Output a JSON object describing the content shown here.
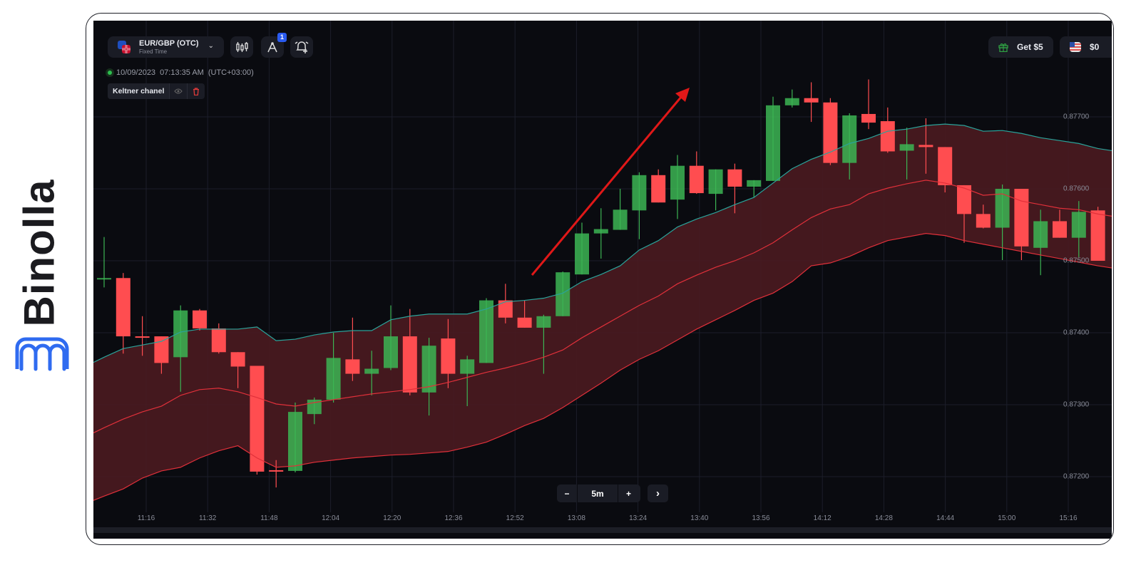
{
  "brand": {
    "name": "Binolla",
    "color": "#2f6bf0"
  },
  "header": {
    "asset": "EUR/GBP (OTC)",
    "asset_type": "Fixed Time",
    "drawings_badge": "1",
    "bonus_label": "Get $5",
    "balance": "$0"
  },
  "status": {
    "datetime": "10/09/2023",
    "time": "07:13:35 AM",
    "timezone": "(UTC+03:00)"
  },
  "indicator": {
    "name": "Keltner chanel"
  },
  "zoom": {
    "minus": "−",
    "timeframe": "5m",
    "plus": "+",
    "next": "›"
  },
  "colors": {
    "bull": "#3cb554",
    "bear": "#ff4d50",
    "upper_band": "#2aa39a",
    "band_lines": "#e0303a",
    "band_fill": "#4a1a20",
    "arrow": "#e01818"
  },
  "chart_data": {
    "type": "candlestick",
    "yticks": [
      "0.87700",
      "0.87600",
      "0.87500",
      "0.87400",
      "0.87300",
      "0.87200"
    ],
    "xticks": [
      "11:16",
      "11:32",
      "11:48",
      "12:04",
      "12:20",
      "12:36",
      "12:52",
      "13:08",
      "13:24",
      "13:40",
      "13:56",
      "14:12",
      "14:28",
      "14:44",
      "15:00",
      "15:16"
    ],
    "candles": [
      [
        0.87474,
        0.87533,
        0.87463,
        0.87476
      ],
      [
        0.87476,
        0.87483,
        0.87371,
        0.87395
      ],
      [
        0.87395,
        0.87423,
        0.87368,
        0.87393
      ],
      [
        0.87395,
        0.87395,
        0.87343,
        0.87358
      ],
      [
        0.87366,
        0.87438,
        0.87318,
        0.87431
      ],
      [
        0.87431,
        0.87433,
        0.87403,
        0.87406
      ],
      [
        0.87406,
        0.87413,
        0.87371,
        0.87373
      ],
      [
        0.87373,
        0.87373,
        0.87323,
        0.87353
      ],
      [
        0.87354,
        0.87354,
        0.87203,
        0.87207
      ],
      [
        0.87209,
        0.87223,
        0.87185,
        0.87207
      ],
      [
        0.87208,
        0.87303,
        0.87206,
        0.8729
      ],
      [
        0.87287,
        0.8731,
        0.87273,
        0.87307
      ],
      [
        0.87307,
        0.874,
        0.87303,
        0.87365
      ],
      [
        0.87363,
        0.87421,
        0.87333,
        0.87343
      ],
      [
        0.87343,
        0.87375,
        0.87313,
        0.8735
      ],
      [
        0.87351,
        0.87438,
        0.87348,
        0.87395
      ],
      [
        0.87395,
        0.87433,
        0.87313,
        0.87317
      ],
      [
        0.87317,
        0.87393,
        0.87285,
        0.87382
      ],
      [
        0.87392,
        0.87419,
        0.87323,
        0.87343
      ],
      [
        0.87343,
        0.87368,
        0.87298,
        0.87363
      ],
      [
        0.87358,
        0.87448,
        0.87358,
        0.87445
      ],
      [
        0.87445,
        0.87468,
        0.87413,
        0.87421
      ],
      [
        0.87421,
        0.87445,
        0.87407,
        0.87407
      ],
      [
        0.87407,
        0.87425,
        0.87343,
        0.87423
      ],
      [
        0.87423,
        0.87485,
        0.87423,
        0.87484
      ],
      [
        0.87481,
        0.87553,
        0.87481,
        0.87538
      ],
      [
        0.87538,
        0.87573,
        0.87503,
        0.87544
      ],
      [
        0.87543,
        0.876,
        0.87543,
        0.87571
      ],
      [
        0.8757,
        0.87623,
        0.8753,
        0.87619
      ],
      [
        0.87619,
        0.87627,
        0.87581,
        0.87581
      ],
      [
        0.87585,
        0.87647,
        0.87558,
        0.87632
      ],
      [
        0.87632,
        0.87652,
        0.87593,
        0.87594
      ],
      [
        0.87593,
        0.87627,
        0.8757,
        0.87627
      ],
      [
        0.87627,
        0.87635,
        0.87566,
        0.87603
      ],
      [
        0.87603,
        0.87612,
        0.87588,
        0.87612
      ],
      [
        0.87611,
        0.87728,
        0.87611,
        0.87716
      ],
      [
        0.87716,
        0.87738,
        0.87713,
        0.87726
      ],
      [
        0.87726,
        0.87748,
        0.87693,
        0.8772
      ],
      [
        0.8772,
        0.87726,
        0.87633,
        0.87636
      ],
      [
        0.87636,
        0.87705,
        0.87613,
        0.87702
      ],
      [
        0.87704,
        0.87752,
        0.87683,
        0.87692
      ],
      [
        0.87694,
        0.87713,
        0.8765,
        0.87652
      ],
      [
        0.87653,
        0.87685,
        0.87613,
        0.87662
      ],
      [
        0.87661,
        0.87698,
        0.87621,
        0.87658
      ],
      [
        0.87658,
        0.87658,
        0.87595,
        0.87605
      ],
      [
        0.87605,
        0.87605,
        0.87525,
        0.87565
      ],
      [
        0.87565,
        0.87578,
        0.87545,
        0.87546
      ],
      [
        0.87546,
        0.87606,
        0.87501,
        0.876
      ],
      [
        0.876,
        0.876,
        0.87501,
        0.8752
      ],
      [
        0.87518,
        0.87571,
        0.8748,
        0.87555
      ],
      [
        0.87555,
        0.87571,
        0.87532,
        0.87532
      ],
      [
        0.87532,
        0.87583,
        0.87505,
        0.87568
      ],
      [
        0.8757,
        0.87575,
        0.875,
        0.875
      ]
    ],
    "keltner_upper": [
      0.87366,
      0.87378,
      0.87383,
      0.87388,
      0.87401,
      0.87405,
      0.87405,
      0.87405,
      0.87408,
      0.87389,
      0.87391,
      0.87397,
      0.87401,
      0.87403,
      0.87403,
      0.87418,
      0.87423,
      0.87426,
      0.87426,
      0.87426,
      0.87433,
      0.87443,
      0.87445,
      0.87448,
      0.87455,
      0.87471,
      0.87481,
      0.87493,
      0.87515,
      0.87528,
      0.87547,
      0.87558,
      0.87567,
      0.87578,
      0.87588,
      0.87608,
      0.87628,
      0.87641,
      0.87651,
      0.87663,
      0.8767,
      0.8768,
      0.87683,
      0.87688,
      0.8769,
      0.87688,
      0.8768,
      0.87681,
      0.87677,
      0.87671,
      0.87667,
      0.87663,
      0.87656
    ],
    "keltner_middle": [
      0.87268,
      0.8728,
      0.8729,
      0.87298,
      0.87313,
      0.87321,
      0.87323,
      0.87318,
      0.8731,
      0.87301,
      0.87298,
      0.87303,
      0.87307,
      0.87311,
      0.87315,
      0.87318,
      0.87321,
      0.87325,
      0.87331,
      0.87338,
      0.87345,
      0.87351,
      0.87358,
      0.87366,
      0.87376,
      0.87393,
      0.87408,
      0.87423,
      0.87438,
      0.87451,
      0.87468,
      0.8748,
      0.87491,
      0.875,
      0.87511,
      0.87525,
      0.87543,
      0.8756,
      0.87572,
      0.87578,
      0.87593,
      0.87601,
      0.87607,
      0.87612,
      0.87608,
      0.87601,
      0.87591,
      0.87593,
      0.87583,
      0.87578,
      0.87573,
      0.87571,
      0.87565
    ],
    "keltner_lower": [
      0.87173,
      0.87183,
      0.87198,
      0.87208,
      0.87213,
      0.87226,
      0.87236,
      0.87243,
      0.87226,
      0.87213,
      0.87215,
      0.8722,
      0.87223,
      0.87226,
      0.87228,
      0.8723,
      0.87231,
      0.87233,
      0.87235,
      0.87241,
      0.87248,
      0.87259,
      0.87271,
      0.87281,
      0.87296,
      0.87313,
      0.8733,
      0.87348,
      0.87363,
      0.87375,
      0.8739,
      0.87405,
      0.87418,
      0.87431,
      0.87445,
      0.87455,
      0.87471,
      0.87493,
      0.87497,
      0.87506,
      0.87518,
      0.87528,
      0.87533,
      0.87538,
      0.87535,
      0.87528,
      0.87523,
      0.87518,
      0.87513,
      0.87508,
      0.87503,
      0.87498,
      0.87493
    ]
  }
}
